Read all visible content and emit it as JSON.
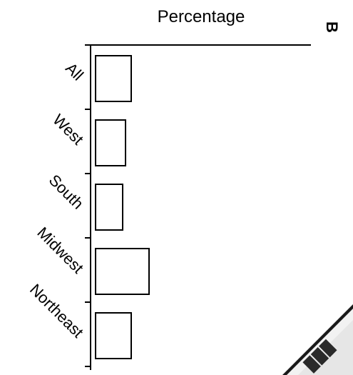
{
  "panel_label": "B",
  "chart_data": {
    "type": "bar",
    "orientation": "horizontal",
    "xlabel": "Percentage",
    "xaxis_position": "top",
    "categories": [
      "All",
      "West",
      "South",
      "Midwest",
      "Northeast"
    ],
    "values": [
      5.0,
      4.2,
      3.8,
      7.5,
      5.0
    ],
    "xlim": [
      0,
      30
    ],
    "grid": false,
    "legend": "none"
  },
  "colors": {
    "bar_stroke": "#000000",
    "bar_fill": "#ffffff",
    "axis": "#000000",
    "text": "#000000"
  }
}
